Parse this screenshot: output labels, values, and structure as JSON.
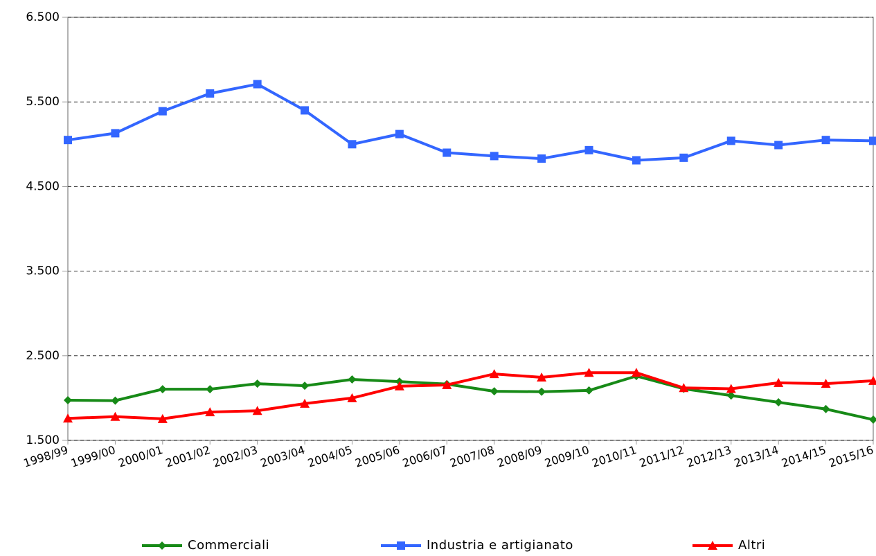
{
  "chart_data": {
    "type": "line",
    "categories": [
      "1998/99",
      "1999/00",
      "2000/01",
      "2001/02",
      "2002/03",
      "2003/04",
      "2004/05",
      "2005/06",
      "2006/07",
      "2007/08",
      "2008/09",
      "2009/10",
      "2010/11",
      "2011/12",
      "2012/13",
      "2013/14",
      "2014/15",
      "2015/16"
    ],
    "series": [
      {
        "name": "Commerciali",
        "color": "#178a17",
        "marker": "diamond",
        "values": [
          1975,
          1970,
          2105,
          2105,
          2170,
          2145,
          2220,
          2195,
          2165,
          2080,
          2075,
          2090,
          2260,
          2110,
          2030,
          1950,
          1870,
          1745
        ]
      },
      {
        "name": "Industria e artigianato",
        "color": "#3366ff",
        "marker": "square",
        "values": [
          5050,
          5130,
          5390,
          5600,
          5710,
          5400,
          5000,
          5120,
          4900,
          4860,
          4830,
          4930,
          4810,
          4840,
          5040,
          4990,
          5050,
          5040
        ]
      },
      {
        "name": "Altri",
        "color": "#ff0000",
        "marker": "triangle",
        "values": [
          1760,
          1780,
          1755,
          1835,
          1850,
          1935,
          2000,
          2140,
          2155,
          2285,
          2245,
          2300,
          2300,
          2120,
          2110,
          2180,
          2170,
          2205
        ]
      }
    ],
    "ylim": [
      1500,
      6500
    ],
    "yticks": [
      {
        "value": 1500,
        "label": "1.500"
      },
      {
        "value": 2500,
        "label": "2.500"
      },
      {
        "value": 3500,
        "label": "3.500"
      },
      {
        "value": 4500,
        "label": "4.500"
      },
      {
        "value": 5500,
        "label": "5.500"
      },
      {
        "value": 6500,
        "label": "6.500"
      }
    ],
    "grid": true,
    "legend": "bottom"
  }
}
